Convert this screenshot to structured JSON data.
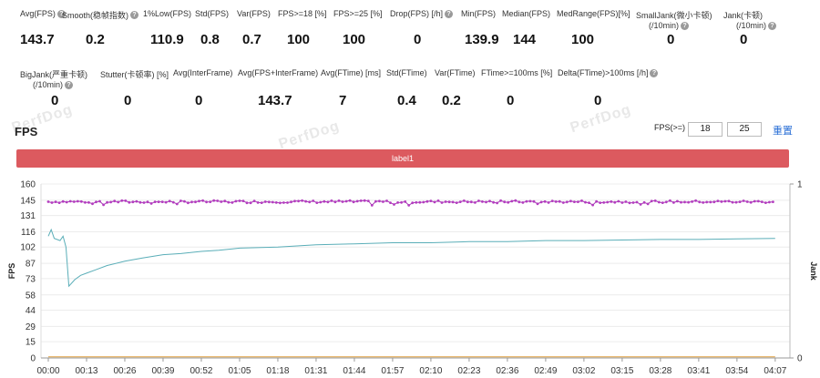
{
  "stats_row1": [
    {
      "label": "Avg(FPS)",
      "help": true,
      "value": "143.7"
    },
    {
      "label": "Smooth(稳帧指数)",
      "help": true,
      "value": "0.2"
    },
    {
      "label": "1%Low(FPS)",
      "help": false,
      "value": "110.9"
    },
    {
      "label": "Std(FPS)",
      "help": false,
      "value": "0.8"
    },
    {
      "label": "Var(FPS)",
      "help": false,
      "value": "0.7"
    },
    {
      "label": "FPS>=18 [%]",
      "help": false,
      "value": "100"
    },
    {
      "label": "FPS>=25 [%]",
      "help": false,
      "value": "100"
    },
    {
      "label": "Drop(FPS) [/h]",
      "help": true,
      "value": "0"
    },
    {
      "label": "Min(FPS)",
      "help": false,
      "value": "139.9"
    },
    {
      "label": "Median(FPS)",
      "help": false,
      "value": "144"
    },
    {
      "label": "MedRange(FPS)[%]",
      "help": false,
      "value": "100"
    },
    {
      "label": "SmallJank(微小卡顿)",
      "label2": "(/10min)",
      "help": true,
      "value": "0"
    },
    {
      "label": "Jank(卡顿)",
      "label2": "(/10min)",
      "help": true,
      "value": "0"
    }
  ],
  "stats_row2": [
    {
      "label": "BigJank(严重卡顿)",
      "label2": "(/10min)",
      "help": true,
      "value": "0"
    },
    {
      "label": "Stutter(卡顿率) [%]",
      "help": false,
      "value": "0"
    },
    {
      "label": "Avg(InterFrame)",
      "help": false,
      "value": "0"
    },
    {
      "label": "Avg(FPS+InterFrame)",
      "help": false,
      "value": "143.7"
    },
    {
      "label": "Avg(FTime) [ms]",
      "help": false,
      "value": "7"
    },
    {
      "label": "Std(FTime)",
      "help": false,
      "value": "0.4"
    },
    {
      "label": "Var(FTime)",
      "help": false,
      "value": "0.2"
    },
    {
      "label": "FTime>=100ms [%]",
      "help": false,
      "value": "0"
    },
    {
      "label": "Delta(FTime)>100ms [/h]",
      "help": true,
      "value": "0"
    }
  ],
  "watermark_text": "PerfDog",
  "section_title": "FPS",
  "threshold_label": "FPS(>=)",
  "threshold_values": [
    "18",
    "25"
  ],
  "reset_label": "重置",
  "label_bar_text": "label1",
  "help_glyph": "?",
  "colors": {
    "fps_line": "#a23bb0",
    "fps_dot": "#b43cc0",
    "teal_line": "#5aaeb8",
    "orange_line": "#e0a040",
    "label_bar": "#dc5a5f",
    "link": "#2a6fd6"
  },
  "chart_data": {
    "type": "line",
    "ylabel": "FPS",
    "y2label": "Jank",
    "yticks": [
      "0",
      "15",
      "29",
      "44",
      "58",
      "73",
      "87",
      "102",
      "116",
      "131",
      "145",
      "160"
    ],
    "ylim": [
      0,
      160
    ],
    "y2ticks": [
      "0",
      "1"
    ],
    "y2lim": [
      0,
      1
    ],
    "xticks": [
      "00:00",
      "00:13",
      "00:26",
      "00:39",
      "00:52",
      "01:05",
      "01:18",
      "01:31",
      "01:44",
      "01:57",
      "02:10",
      "02:23",
      "02:36",
      "02:49",
      "03:02",
      "03:15",
      "03:28",
      "03:41",
      "03:54",
      "04:07"
    ],
    "x_seconds": [
      0,
      13,
      26,
      39,
      52,
      65,
      78,
      91,
      104,
      117,
      130,
      143,
      156,
      169,
      182,
      195,
      208,
      221,
      234,
      247
    ],
    "grid": true,
    "series": [
      {
        "name": "",
        "color": "#a23bb0",
        "style": "dotted-line",
        "values_avg": 143.7,
        "points": [
          [
            0,
            144
          ],
          [
            247,
            143.7
          ]
        ]
      },
      {
        "name": "",
        "color": "#5aaeb8",
        "style": "line",
        "points": [
          [
            0,
            112
          ],
          [
            1,
            118
          ],
          [
            2,
            110
          ],
          [
            4,
            108
          ],
          [
            5,
            112
          ],
          [
            6,
            102
          ],
          [
            7,
            66
          ],
          [
            9,
            72
          ],
          [
            11,
            76
          ],
          [
            13,
            78
          ],
          [
            16,
            81
          ],
          [
            20,
            85
          ],
          [
            26,
            89
          ],
          [
            32,
            92
          ],
          [
            39,
            95
          ],
          [
            45,
            96
          ],
          [
            52,
            98
          ],
          [
            58,
            99
          ],
          [
            65,
            101
          ],
          [
            78,
            102
          ],
          [
            91,
            104
          ],
          [
            104,
            105
          ],
          [
            117,
            106
          ],
          [
            130,
            106
          ],
          [
            143,
            107
          ],
          [
            156,
            107
          ],
          [
            169,
            108
          ],
          [
            182,
            108
          ],
          [
            195,
            108.5
          ],
          [
            208,
            109
          ],
          [
            221,
            109
          ],
          [
            234,
            109.5
          ],
          [
            247,
            110
          ]
        ]
      },
      {
        "name": "",
        "color": "#e0a040",
        "style": "line",
        "points": [
          [
            0,
            1
          ],
          [
            247,
            1
          ]
        ]
      }
    ]
  }
}
